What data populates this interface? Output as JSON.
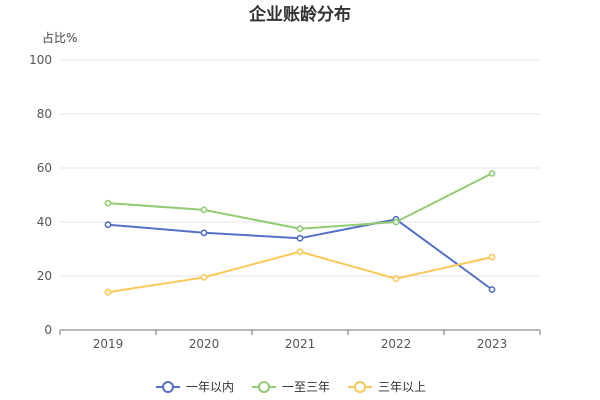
{
  "chart_data": {
    "type": "line",
    "title": "企业账龄分布",
    "ylabel": "占比%",
    "xlabel": "",
    "categories": [
      "2019",
      "2020",
      "2021",
      "2022",
      "2023"
    ],
    "ylim": [
      0,
      100
    ],
    "yticks": [
      "0",
      "20",
      "40",
      "60",
      "80",
      "100"
    ],
    "grid": true,
    "legend_position": "bottom-center",
    "series": [
      {
        "name": "一年以内",
        "color": "#5470c6",
        "values": [
          39,
          36,
          34,
          41,
          15
        ]
      },
      {
        "name": "一至三年",
        "color": "#91cc75",
        "values": [
          47,
          44.5,
          37.5,
          40,
          58
        ]
      },
      {
        "name": "三年以上",
        "color": "#fac858",
        "values": [
          14,
          19.5,
          29,
          19,
          27
        ]
      }
    ]
  }
}
